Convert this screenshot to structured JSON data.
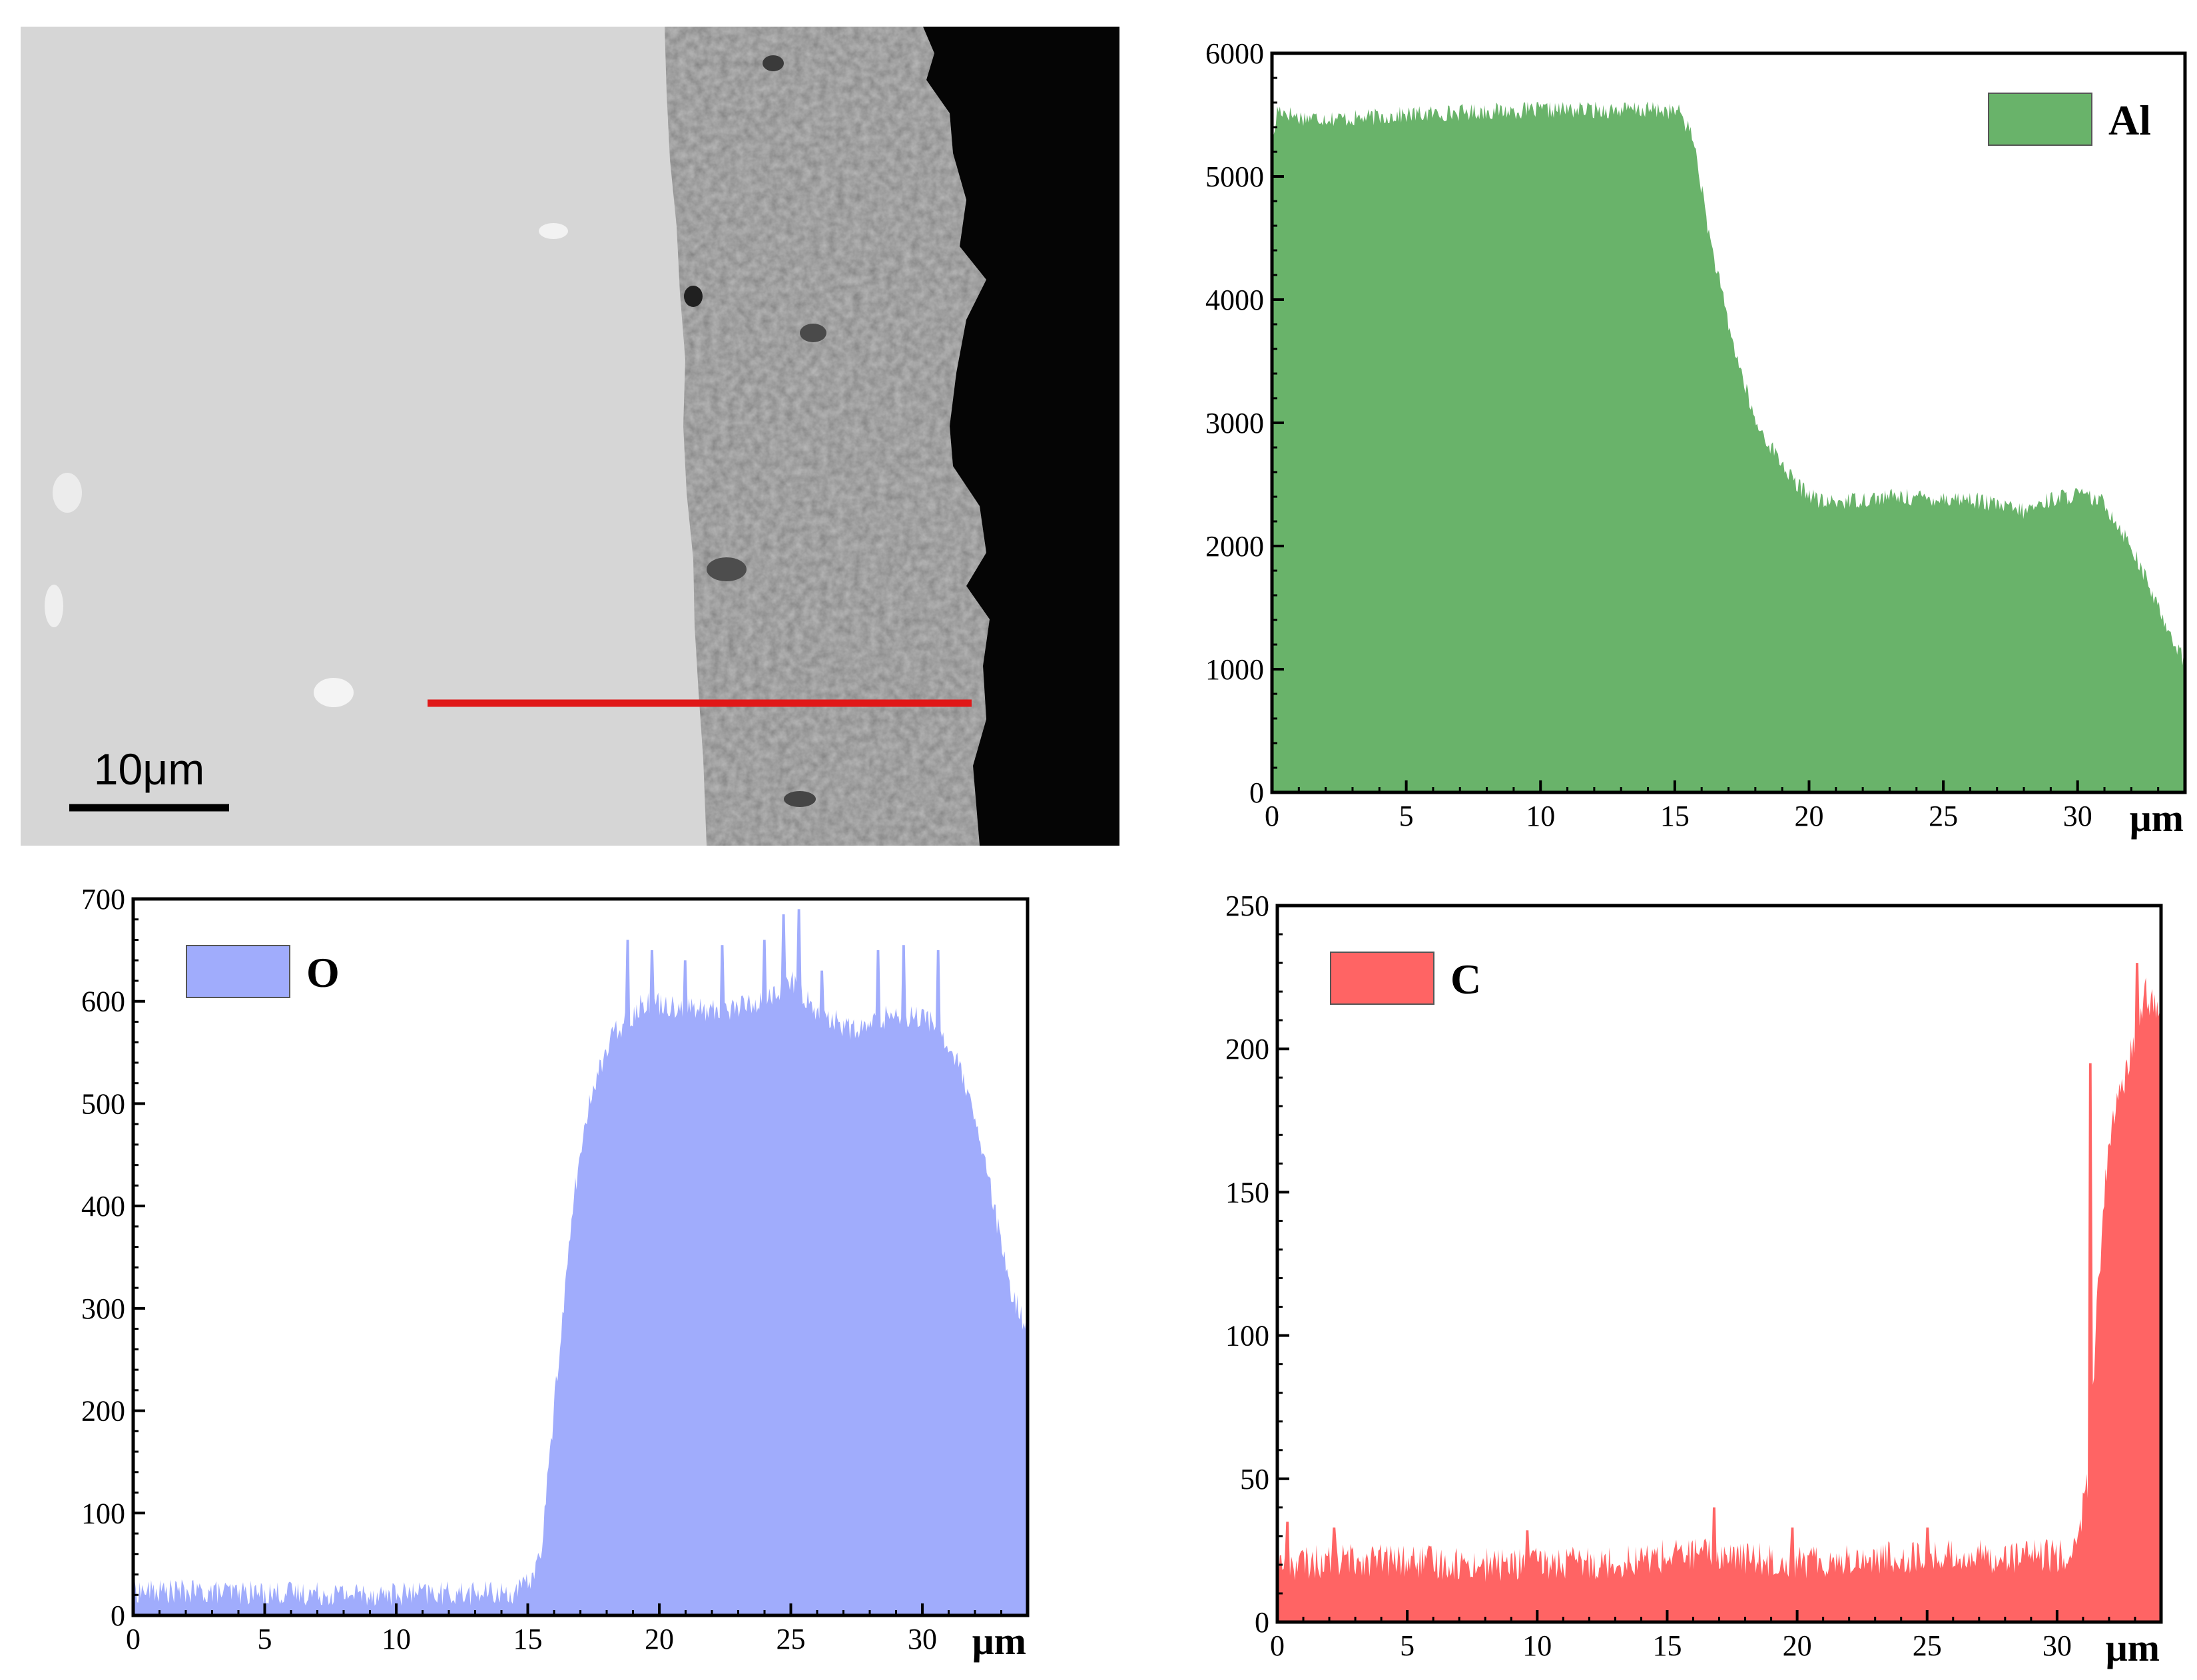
{
  "image": {
    "scale_bar_label": "10μm",
    "colors": {
      "line_scan": "#e01818",
      "matrix": "#d4d4d4",
      "coating": "#b8b8b8",
      "background": "#050505"
    }
  },
  "chart_data": [
    {
      "type": "area",
      "series": [
        {
          "name": "Al",
          "color": "#69b36a"
        }
      ],
      "xlim": [
        0,
        34
      ],
      "ylim": [
        0,
        6000
      ],
      "xticks": [
        0,
        5,
        10,
        15,
        20,
        25,
        30
      ],
      "yticks": [
        0,
        1000,
        2000,
        3000,
        4000,
        5000,
        6000
      ],
      "x_unit": "μm",
      "noise": 70,
      "profile": [
        [
          0,
          5200
        ],
        [
          0.2,
          5550
        ],
        [
          1,
          5480
        ],
        [
          3,
          5470
        ],
        [
          5,
          5500
        ],
        [
          8,
          5530
        ],
        [
          11,
          5540
        ],
        [
          14.5,
          5540
        ],
        [
          15.2,
          5520
        ],
        [
          15.7,
          5300
        ],
        [
          16.3,
          4500
        ],
        [
          17.1,
          3700
        ],
        [
          18,
          3000
        ],
        [
          19.5,
          2500
        ],
        [
          20.5,
          2350
        ],
        [
          23,
          2400
        ],
        [
          26,
          2380
        ],
        [
          28,
          2280
        ],
        [
          29,
          2380
        ],
        [
          30,
          2420
        ],
        [
          31,
          2350
        ],
        [
          32,
          2000
        ],
        [
          33,
          1500
        ],
        [
          34,
          1050
        ]
      ],
      "legend": "top-right"
    },
    {
      "type": "area",
      "series": [
        {
          "name": "O",
          "color": "#a0acfc"
        }
      ],
      "xlim": [
        0,
        34
      ],
      "ylim": [
        0,
        700
      ],
      "xticks": [
        0,
        5,
        10,
        15,
        20,
        25,
        30
      ],
      "yticks": [
        0,
        100,
        200,
        300,
        400,
        500,
        600,
        700
      ],
      "x_unit": "μm",
      "noise": 12,
      "profile": [
        [
          0,
          24
        ],
        [
          5,
          22
        ],
        [
          10,
          21
        ],
        [
          14.5,
          22
        ],
        [
          15,
          30
        ],
        [
          15.5,
          60
        ],
        [
          16.2,
          260
        ],
        [
          16.8,
          420
        ],
        [
          17.5,
          520
        ],
        [
          18.3,
          570
        ],
        [
          19.5,
          600
        ],
        [
          22,
          590
        ],
        [
          24,
          600
        ],
        [
          25,
          620
        ],
        [
          26,
          590
        ],
        [
          27.5,
          570
        ],
        [
          29,
          590
        ],
        [
          30.5,
          580
        ],
        [
          31.5,
          530
        ],
        [
          32.5,
          430
        ],
        [
          33.3,
          320
        ],
        [
          34,
          280
        ]
      ],
      "spikes": [
        [
          18.8,
          660
        ],
        [
          19.7,
          650
        ],
        [
          21,
          640
        ],
        [
          22.4,
          655
        ],
        [
          24,
          660
        ],
        [
          24.7,
          685
        ],
        [
          25.3,
          690
        ],
        [
          26.2,
          630
        ],
        [
          28.3,
          650
        ],
        [
          29.3,
          655
        ],
        [
          30.6,
          650
        ]
      ],
      "legend": "top-left"
    },
    {
      "type": "area",
      "series": [
        {
          "name": "C",
          "color": "#ff6464"
        }
      ],
      "xlim": [
        0,
        34
      ],
      "ylim": [
        0,
        250
      ],
      "xticks": [
        0,
        5,
        10,
        15,
        20,
        25,
        30
      ],
      "yticks": [
        0,
        50,
        100,
        150,
        200,
        250
      ],
      "x_unit": "μm",
      "noise": 6,
      "profile": [
        [
          0,
          20
        ],
        [
          3,
          22
        ],
        [
          8,
          20
        ],
        [
          13,
          21
        ],
        [
          16,
          24
        ],
        [
          20,
          21
        ],
        [
          25,
          23
        ],
        [
          30,
          23
        ],
        [
          30.7,
          25
        ],
        [
          31.2,
          50
        ],
        [
          31.6,
          120
        ],
        [
          32,
          170
        ],
        [
          32.5,
          185
        ],
        [
          33,
          205
        ],
        [
          33.4,
          220
        ],
        [
          34,
          210
        ]
      ],
      "spikes": [
        [
          0.4,
          35
        ],
        [
          2.2,
          33
        ],
        [
          9.6,
          32
        ],
        [
          16.8,
          40
        ],
        [
          19.8,
          33
        ],
        [
          25,
          33
        ],
        [
          31.3,
          195
        ],
        [
          33.1,
          230
        ]
      ],
      "legend": "top-left"
    }
  ]
}
